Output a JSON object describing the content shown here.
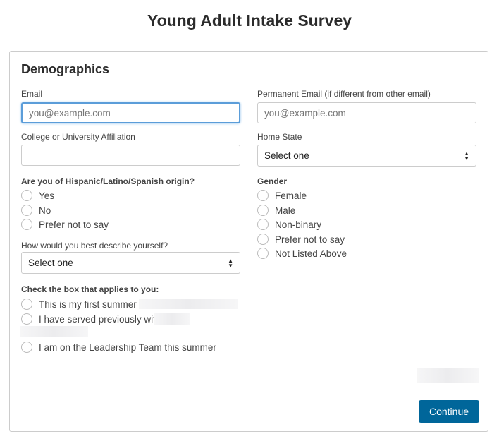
{
  "title": "Young Adult Intake Survey",
  "section": "Demographics",
  "email": {
    "label": "Email",
    "placeholder": "you@example.com"
  },
  "perm_email": {
    "label": "Permanent Email (if different from other email)",
    "placeholder": "you@example.com"
  },
  "college": {
    "label": "College or University Affiliation",
    "value": ""
  },
  "home_state": {
    "label": "Home State",
    "value": "Select one"
  },
  "hispanic": {
    "label": "Are you of Hispanic/Latino/Spanish origin?",
    "options": [
      "Yes",
      "No",
      "Prefer not to say"
    ]
  },
  "gender": {
    "label": "Gender",
    "options": [
      "Female",
      "Male",
      "Non-binary",
      "Prefer not to say",
      "Not Listed Above"
    ]
  },
  "describe": {
    "label": "How would you best describe yourself?",
    "value": "Select one"
  },
  "applies": {
    "label": "Check the box that applies to you:",
    "options": [
      "This is my first summer at",
      "I have served previously with",
      "I am on the Leadership Team this summer"
    ]
  },
  "continue_label": "Continue",
  "colors": {
    "accent": "#00669a",
    "focus": "#5b9dd9"
  }
}
